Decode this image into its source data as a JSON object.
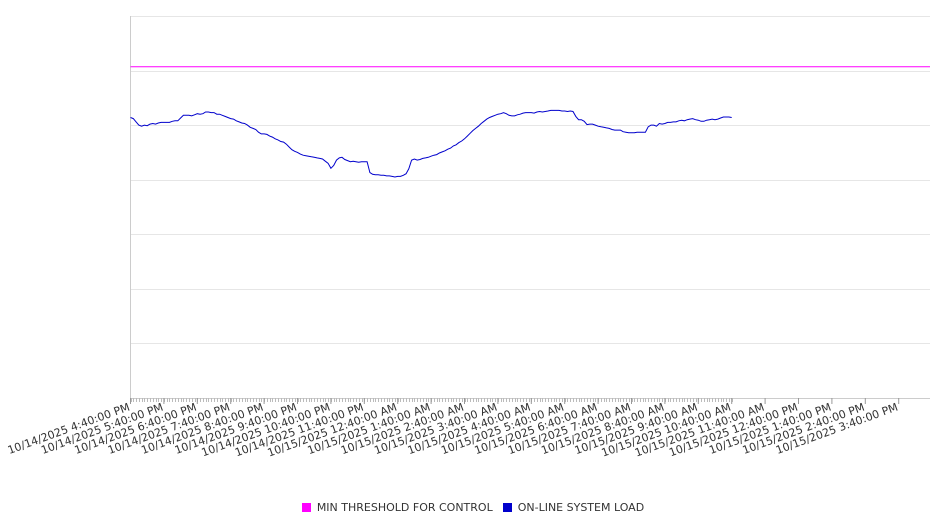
{
  "chart_data": {
    "type": "line",
    "title": "",
    "xlabel": "",
    "ylabel": "",
    "x_start": "10/14/2025 4:40:00 PM",
    "x_step_minutes": 5,
    "x_tick_every_minutes": 60,
    "x_tick_labels": [
      "10/14/2025 4:40:00 PM",
      "10/14/2025 5:40:00 PM",
      "10/14/2025 6:40:00 PM",
      "10/14/2025 7:40:00 PM",
      "10/14/2025 8:40:00 PM",
      "10/14/2025 9:40:00 PM",
      "10/14/2025 10:40:00 PM",
      "10/14/2025 11:40:00 PM",
      "10/15/2025 12:40:00 AM",
      "10/15/2025 1:40:00 AM",
      "10/15/2025 2:40:00 AM",
      "10/15/2025 3:40:00 AM",
      "10/15/2025 4:40:00 AM",
      "10/15/2025 5:40:00 AM",
      "10/15/2025 6:40:00 AM",
      "10/15/2025 7:40:00 AM",
      "10/15/2025 8:40:00 AM",
      "10/15/2025 9:40:00 AM",
      "10/15/2025 10:40:00 AM",
      "10/15/2025 11:40:00 AM",
      "10/15/2025 12:40:00 PM",
      "10/15/2025 1:40:00 PM",
      "10/15/2025 2:40:00 PM",
      "10/15/2025 3:40:00 PM"
    ],
    "ylim": [
      0,
      700
    ],
    "y_gridlines": [
      100,
      200,
      300,
      400,
      500,
      600,
      700
    ],
    "grid": true,
    "legend_position": "bottom-center",
    "series": [
      {
        "name": "MIN THRESHOLD FOR CONTROL",
        "color": "#ff00ff",
        "values": "constant",
        "constant_value": 607
      },
      {
        "name": "ON-LINE SYSTEM LOAD",
        "color": "#0000cc",
        "values": [
          514,
          512,
          506,
          500,
          498,
          500,
          499,
          502,
          503,
          502,
          504,
          505,
          505,
          505,
          505,
          507,
          508,
          508,
          513,
          518,
          518,
          518,
          517,
          519,
          521,
          520,
          521,
          524,
          524,
          523,
          523,
          520,
          520,
          518,
          516,
          514,
          512,
          511,
          508,
          506,
          504,
          503,
          500,
          496,
          494,
          492,
          487,
          484,
          484,
          483,
          480,
          478,
          475,
          473,
          470,
          469,
          465,
          460,
          455,
          452,
          450,
          447,
          445,
          444,
          443,
          442,
          441,
          440,
          439,
          438,
          434,
          430,
          421,
          426,
          436,
          440,
          441,
          437,
          435,
          433,
          434,
          433,
          432,
          433,
          433,
          433,
          413,
          410,
          409,
          409,
          408,
          408,
          407,
          407,
          406,
          405,
          406,
          406,
          408,
          411,
          420,
          436,
          438,
          436,
          437,
          439,
          440,
          441,
          443,
          445,
          446,
          449,
          451,
          453,
          456,
          458,
          462,
          464,
          468,
          471,
          475,
          480,
          485,
          490,
          494,
          498,
          503,
          507,
          511,
          514,
          516,
          518,
          520,
          521,
          523,
          521,
          518,
          517,
          517,
          519,
          520,
          522,
          523,
          523,
          523,
          522,
          524,
          525,
          524,
          525,
          526,
          527,
          527,
          527,
          527,
          526,
          526,
          525,
          526,
          525,
          516,
          510,
          510,
          507,
          501,
          502,
          502,
          500,
          498,
          497,
          496,
          495,
          494,
          492,
          491,
          491,
          491,
          488,
          487,
          486,
          486,
          486,
          487,
          487,
          487,
          487,
          497,
          500,
          500,
          498,
          503,
          502,
          503,
          505,
          505,
          506,
          506,
          508,
          509,
          508,
          510,
          511,
          512,
          510,
          509,
          507,
          507,
          509,
          510,
          511,
          510,
          511,
          513,
          515,
          515,
          515,
          514
        ]
      }
    ]
  }
}
